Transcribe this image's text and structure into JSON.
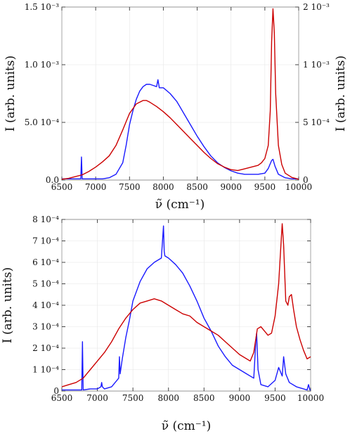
{
  "chart_data": [
    {
      "type": "line",
      "title": "",
      "xlabel": "ν̃ (cm⁻¹)",
      "ylabel": "I (arb. units)",
      "y2label": "I (arb. units)",
      "xlim": [
        6500,
        10000
      ],
      "ylim": [
        0,
        0.0015
      ],
      "y2lim": [
        0,
        0.002
      ],
      "x_ticks": [
        "6500",
        "7000",
        "7500",
        "8000",
        "8500",
        "9000",
        "9500",
        "10000"
      ],
      "y_ticks_left": [
        "0.0",
        "5.0 10⁻⁴",
        "1.0 10⁻³",
        "1.5 10⁻³"
      ],
      "y_ticks_right": [
        "0",
        "5 10⁻⁴",
        "1 10⁻³",
        "2 10⁻³"
      ],
      "series": [
        {
          "color": "#1a1aff",
          "axis": "left",
          "x": [
            6500,
            6600,
            6700,
            6780,
            6790,
            6800,
            6900,
            7000,
            7100,
            7200,
            7300,
            7400,
            7450,
            7500,
            7550,
            7600,
            7650,
            7700,
            7750,
            7800,
            7850,
            7900,
            7920,
            7940,
            8000,
            8100,
            8200,
            8300,
            8400,
            8500,
            8600,
            8700,
            8800,
            8900,
            9000,
            9100,
            9200,
            9300,
            9400,
            9500,
            9550,
            9600,
            9620,
            9650,
            9700,
            9800,
            9900,
            10000
          ],
          "y": [
            1e-05,
            1e-05,
            1e-05,
            1e-05,
            0.0002,
            1e-05,
            1e-05,
            1e-05,
            1e-05,
            2e-05,
            5e-05,
            0.00015,
            0.0003,
            0.00048,
            0.0006,
            0.0007,
            0.00077,
            0.00081,
            0.00083,
            0.00083,
            0.00082,
            0.00081,
            0.00087,
            0.0008,
            0.0008,
            0.00075,
            0.00068,
            0.00058,
            0.00048,
            0.00038,
            0.00029,
            0.00021,
            0.00015,
            0.00011,
            8e-05,
            6e-05,
            5e-05,
            5e-05,
            5e-05,
            6e-05,
            0.0001,
            0.00017,
            0.00018,
            0.00012,
            5e-05,
            2e-05,
            1e-05,
            1e-05
          ]
        },
        {
          "color": "#cc0000",
          "axis": "right",
          "x": [
            6500,
            6600,
            6700,
            6800,
            6900,
            7000,
            7100,
            7200,
            7300,
            7400,
            7500,
            7600,
            7700,
            7750,
            7800,
            7900,
            8000,
            8100,
            8200,
            8300,
            8400,
            8500,
            8600,
            8700,
            8800,
            8900,
            9000,
            9100,
            9200,
            9300,
            9400,
            9450,
            9500,
            9550,
            9580,
            9600,
            9620,
            9640,
            9660,
            9700,
            9750,
            9800,
            9900,
            10000
          ],
          "y": [
            1e-05,
            2e-05,
            4e-05,
            6e-05,
            0.0001,
            0.00015,
            0.00021,
            0.00028,
            0.0004,
            0.00058,
            0.00077,
            0.00088,
            0.00092,
            0.00092,
            0.0009,
            0.00085,
            0.00079,
            0.00072,
            0.00064,
            0.00056,
            0.00048,
            0.0004,
            0.00032,
            0.00025,
            0.00019,
            0.00015,
            0.00012,
            0.00011,
            0.00013,
            0.00015,
            0.00017,
            0.0002,
            0.00025,
            0.0004,
            0.0008,
            0.0016,
            0.00198,
            0.0017,
            0.001,
            0.0004,
            0.00018,
            8e-05,
            3e-05,
            1e-05
          ]
        }
      ]
    },
    {
      "type": "line",
      "title": "",
      "xlabel": "ν̃ (cm⁻¹)",
      "ylabel": "I (arb. units)",
      "xlim": [
        6500,
        10000
      ],
      "ylim": [
        0,
        0.0008
      ],
      "x_ticks": [
        "6500",
        "7000",
        "7500",
        "8000",
        "8500",
        "9000",
        "9500",
        "10000"
      ],
      "y_ticks_left": [
        "0",
        "1 10⁻⁴",
        "2 10⁻⁴",
        "3 10⁻⁴",
        "4 10⁻⁴",
        "5 10⁻⁴",
        "6 10⁻⁴",
        "7 10⁻⁴",
        "8 10⁻⁴"
      ],
      "series": [
        {
          "color": "#1a1aff",
          "x": [
            6500,
            6600,
            6700,
            6780,
            6790,
            6800,
            6900,
            7000,
            7050,
            7060,
            7070,
            7100,
            7200,
            7300,
            7310,
            7320,
            7350,
            7400,
            7450,
            7500,
            7600,
            7700,
            7800,
            7900,
            7930,
            7940,
            7950,
            8000,
            8100,
            8200,
            8300,
            8400,
            8500,
            8600,
            8700,
            8800,
            8900,
            9000,
            9100,
            9200,
            9230,
            9240,
            9260,
            9300,
            9400,
            9500,
            9550,
            9600,
            9620,
            9650,
            9700,
            9800,
            9900,
            9950,
            9970,
            9990,
            10000
          ],
          "y": [
            5e-06,
            5e-06,
            5e-06,
            5e-06,
            0.00023,
            5e-06,
            1e-05,
            1e-05,
            2e-05,
            4e-05,
            2e-05,
            1e-05,
            2e-05,
            6e-05,
            0.00016,
            8e-05,
            0.00015,
            0.00025,
            0.00033,
            0.00042,
            0.00051,
            0.00057,
            0.0006,
            0.00062,
            0.00077,
            0.00065,
            0.00063,
            0.00062,
            0.00059,
            0.00055,
            0.00049,
            0.00042,
            0.00034,
            0.00028,
            0.00021,
            0.00016,
            0.00012,
            0.0001,
            8e-05,
            6e-05,
            0.00024,
            0.00027,
            0.0001,
            3e-05,
            2e-05,
            5e-05,
            0.00011,
            7e-05,
            0.00016,
            8e-05,
            4e-05,
            2e-05,
            1e-05,
            5e-06,
            3e-05,
            5e-06,
            5e-06
          ]
        },
        {
          "color": "#cc0000",
          "x": [
            6500,
            6600,
            6700,
            6800,
            6900,
            7000,
            7100,
            7200,
            7300,
            7400,
            7500,
            7600,
            7700,
            7800,
            7900,
            8000,
            8100,
            8200,
            8300,
            8400,
            8500,
            8600,
            8700,
            8800,
            8900,
            9000,
            9100,
            9150,
            9200,
            9250,
            9300,
            9350,
            9400,
            9450,
            9500,
            9550,
            9580,
            9600,
            9620,
            9650,
            9680,
            9700,
            9730,
            9760,
            9800,
            9850,
            9900,
            9950,
            10000
          ],
          "y": [
            2e-05,
            3e-05,
            4e-05,
            6e-05,
            0.0001,
            0.00014,
            0.00018,
            0.00023,
            0.00029,
            0.00034,
            0.00038,
            0.00041,
            0.00042,
            0.00043,
            0.00042,
            0.0004,
            0.00038,
            0.00036,
            0.00035,
            0.00032,
            0.0003,
            0.00028,
            0.00026,
            0.00023,
            0.0002,
            0.00017,
            0.00015,
            0.00014,
            0.00018,
            0.00029,
            0.0003,
            0.00028,
            0.00026,
            0.00027,
            0.00035,
            0.0005,
            0.00067,
            0.00078,
            0.00068,
            0.00042,
            0.0004,
            0.00044,
            0.00045,
            0.00038,
            0.0003,
            0.00024,
            0.00019,
            0.00015,
            0.00016
          ]
        }
      ]
    }
  ]
}
